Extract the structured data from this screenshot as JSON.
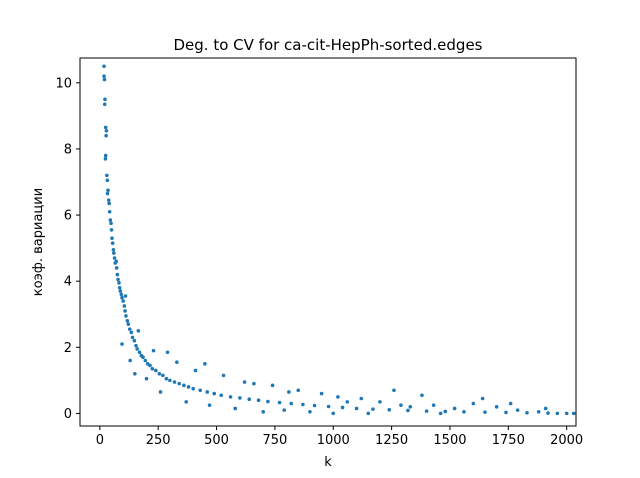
{
  "chart_data": {
    "type": "scatter",
    "title": "Deg. to CV for ca-cit-HepPh-sorted.edges",
    "xlabel": "k",
    "ylabel": "коэф. вариации",
    "xlim": [
      -85,
      2040
    ],
    "ylim": [
      -0.38,
      10.75
    ],
    "xticks": [
      0,
      250,
      500,
      750,
      1000,
      1250,
      1500,
      1750,
      2000
    ],
    "yticks": [
      0,
      2,
      4,
      6,
      8,
      10
    ],
    "xtick_labels": [
      "0",
      "250",
      "500",
      "750",
      "1000",
      "1250",
      "1500",
      "1750",
      "2000"
    ],
    "ytick_labels": [
      "0",
      "2",
      "4",
      "6",
      "8",
      "10"
    ],
    "grid": false,
    "marker_color": "#1f77b4",
    "series": [
      {
        "points": [
          [
            18,
            10.5
          ],
          [
            18,
            10.2
          ],
          [
            20,
            10.1
          ],
          [
            22,
            9.5
          ],
          [
            21,
            9.35
          ],
          [
            25,
            8.65
          ],
          [
            28,
            8.55
          ],
          [
            27,
            8.4
          ],
          [
            25,
            7.8
          ],
          [
            24,
            7.7
          ],
          [
            30,
            7.2
          ],
          [
            32,
            7.05
          ],
          [
            35,
            6.75
          ],
          [
            33,
            6.65
          ],
          [
            38,
            6.45
          ],
          [
            40,
            6.35
          ],
          [
            42,
            6.1
          ],
          [
            45,
            5.85
          ],
          [
            48,
            5.75
          ],
          [
            50,
            5.55
          ],
          [
            52,
            5.3
          ],
          [
            55,
            5.15
          ],
          [
            58,
            4.95
          ],
          [
            60,
            4.85
          ],
          [
            63,
            4.7
          ],
          [
            66,
            4.55
          ],
          [
            70,
            4.6
          ],
          [
            72,
            4.4
          ],
          [
            75,
            4.2
          ],
          [
            78,
            4.05
          ],
          [
            82,
            3.95
          ],
          [
            85,
            3.8
          ],
          [
            88,
            3.7
          ],
          [
            92,
            3.6
          ],
          [
            95,
            3.5
          ],
          [
            100,
            3.4
          ],
          [
            105,
            3.25
          ],
          [
            108,
            3.1
          ],
          [
            112,
            2.95
          ],
          [
            118,
            2.8
          ],
          [
            122,
            2.7
          ],
          [
            128,
            2.55
          ],
          [
            135,
            2.45
          ],
          [
            140,
            2.3
          ],
          [
            148,
            2.2
          ],
          [
            155,
            2.05
          ],
          [
            160,
            1.95
          ],
          [
            170,
            1.85
          ],
          [
            178,
            1.75
          ],
          [
            185,
            1.7
          ],
          [
            195,
            1.6
          ],
          [
            205,
            1.5
          ],
          [
            215,
            1.45
          ],
          [
            225,
            1.35
          ],
          [
            240,
            1.3
          ],
          [
            255,
            1.2
          ],
          [
            270,
            1.15
          ],
          [
            285,
            1.05
          ],
          [
            300,
            1.0
          ],
          [
            320,
            0.95
          ],
          [
            340,
            0.9
          ],
          [
            360,
            0.85
          ],
          [
            380,
            0.8
          ],
          [
            400,
            0.75
          ],
          [
            430,
            0.7
          ],
          [
            460,
            0.65
          ],
          [
            490,
            0.6
          ],
          [
            520,
            0.55
          ],
          [
            560,
            0.5
          ],
          [
            600,
            0.47
          ],
          [
            640,
            0.43
          ],
          [
            680,
            0.4
          ],
          [
            720,
            0.36
          ],
          [
            770,
            0.33
          ],
          [
            820,
            0.3
          ],
          [
            870,
            0.27
          ],
          [
            920,
            0.24
          ],
          [
            980,
            0.21
          ],
          [
            1040,
            0.18
          ],
          [
            1100,
            0.15
          ],
          [
            1170,
            0.13
          ],
          [
            1240,
            0.11
          ],
          [
            1320,
            0.09
          ],
          [
            1400,
            0.07
          ],
          [
            1480,
            0.06
          ],
          [
            1560,
            0.05
          ],
          [
            1650,
            0.04
          ],
          [
            1740,
            0.03
          ],
          [
            1830,
            0.02
          ],
          [
            1920,
            0.01
          ],
          [
            2000,
            0.0
          ],
          [
            2030,
            0.0
          ],
          [
            95,
            2.1
          ],
          [
            110,
            3.55
          ],
          [
            130,
            1.6
          ],
          [
            150,
            1.2
          ],
          [
            165,
            2.5
          ],
          [
            200,
            1.05
          ],
          [
            230,
            1.9
          ],
          [
            260,
            0.65
          ],
          [
            290,
            1.85
          ],
          [
            330,
            1.55
          ],
          [
            370,
            0.35
          ],
          [
            410,
            1.3
          ],
          [
            450,
            1.5
          ],
          [
            470,
            0.25
          ],
          [
            530,
            1.15
          ],
          [
            580,
            0.15
          ],
          [
            620,
            0.95
          ],
          [
            660,
            0.9
          ],
          [
            700,
            0.05
          ],
          [
            740,
            0.85
          ],
          [
            790,
            0.1
          ],
          [
            810,
            0.65
          ],
          [
            850,
            0.7
          ],
          [
            900,
            0.05
          ],
          [
            950,
            0.6
          ],
          [
            1000,
            0.0
          ],
          [
            1020,
            0.5
          ],
          [
            1060,
            0.35
          ],
          [
            1120,
            0.45
          ],
          [
            1150,
            0.0
          ],
          [
            1200,
            0.35
          ],
          [
            1260,
            0.7
          ],
          [
            1290,
            0.25
          ],
          [
            1330,
            0.2
          ],
          [
            1380,
            0.55
          ],
          [
            1430,
            0.25
          ],
          [
            1460,
            0.0
          ],
          [
            1520,
            0.15
          ],
          [
            1600,
            0.3
          ],
          [
            1640,
            0.45
          ],
          [
            1700,
            0.2
          ],
          [
            1760,
            0.3
          ],
          [
            1790,
            0.1
          ],
          [
            1880,
            0.05
          ],
          [
            1910,
            0.15
          ],
          [
            1960,
            0.0
          ]
        ]
      }
    ]
  }
}
